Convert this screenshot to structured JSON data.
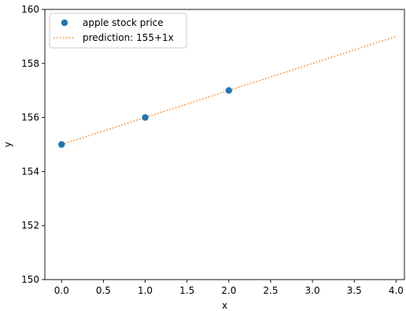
{
  "chart_data": {
    "type": "scatter",
    "title": "",
    "xlabel": "x",
    "ylabel": "y",
    "xlim": [
      -0.2,
      4.1
    ],
    "ylim": [
      150,
      160
    ],
    "xticks": [
      0.0,
      0.5,
      1.0,
      1.5,
      2.0,
      2.5,
      3.0,
      3.5,
      4.0
    ],
    "xtick_labels": [
      "0.0",
      "0.5",
      "1.0",
      "1.5",
      "2.0",
      "2.5",
      "3.0",
      "3.5",
      "4.0"
    ],
    "yticks": [
      150,
      152,
      154,
      156,
      158,
      160
    ],
    "ytick_labels": [
      "150",
      "152",
      "154",
      "156",
      "158",
      "160"
    ],
    "grid": false,
    "legend_position": "top-left",
    "series": [
      {
        "name": "apple stock price",
        "kind": "scatter",
        "color": "#1f77b4",
        "x": [
          0,
          1,
          2
        ],
        "y": [
          155,
          156,
          157
        ]
      },
      {
        "name": "prediction: 155+1x",
        "kind": "line",
        "style": "dotted",
        "color": "#ff7f0e",
        "x": [
          0,
          4
        ],
        "y": [
          155,
          159
        ]
      }
    ]
  }
}
